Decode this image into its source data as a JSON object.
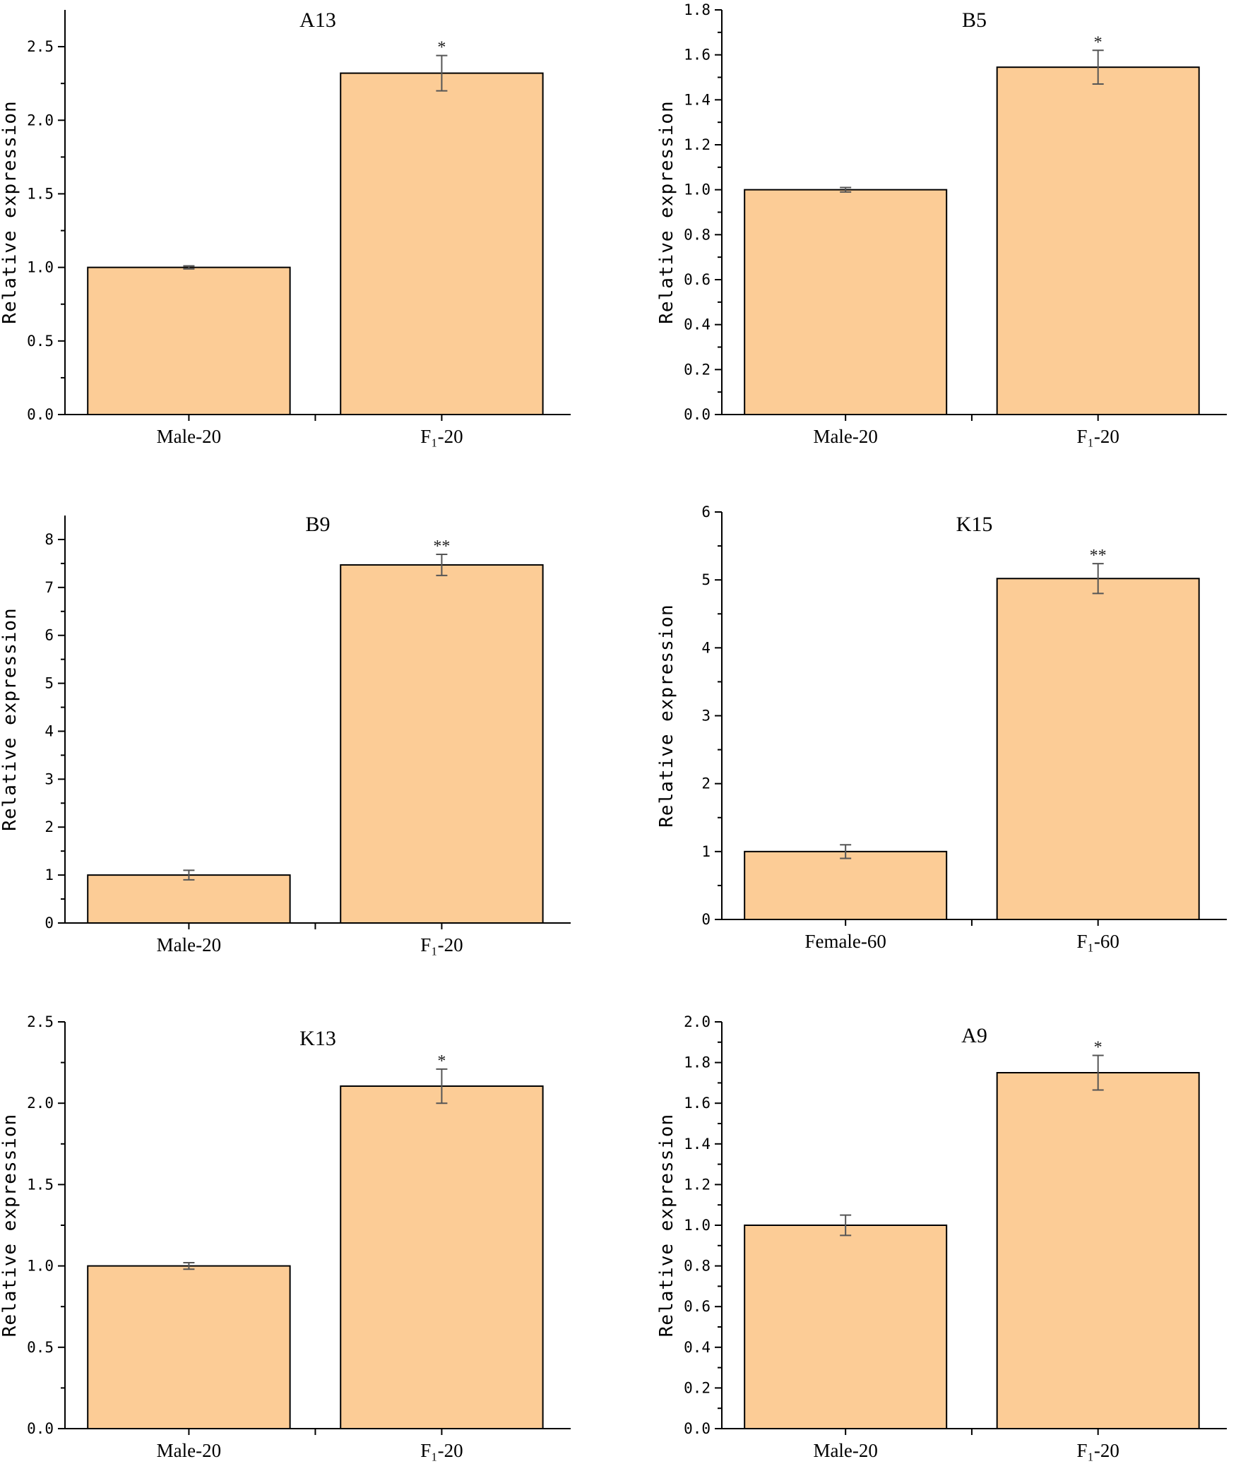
{
  "chart_data": [
    {
      "type": "bar",
      "title": "A13",
      "xlabel": "",
      "ylabel": "Relative expression",
      "categories": [
        "Male-20",
        "F₁-20"
      ],
      "values": [
        1.0,
        2.32
      ],
      "errors": [
        0.01,
        0.12
      ],
      "significance": [
        "",
        "*"
      ],
      "ylim": [
        0,
        2.75
      ],
      "yticks": [
        0,
        0.5,
        1.0,
        1.5,
        2.0,
        2.5
      ],
      "ytick_labels": [
        "0.0",
        "0.5",
        "1.0",
        "1.5",
        "2.0",
        "2.5"
      ],
      "color": "#FCCC96"
    },
    {
      "type": "bar",
      "title": "B5",
      "xlabel": "",
      "ylabel": "Relative expression",
      "categories": [
        "Male-20",
        "F₁-20"
      ],
      "values": [
        1.0,
        1.545
      ],
      "errors": [
        0.01,
        0.075
      ],
      "significance": [
        "",
        "*"
      ],
      "ylim": [
        0,
        1.8
      ],
      "yticks": [
        0,
        0.2,
        0.4,
        0.6,
        0.8,
        1.0,
        1.2,
        1.4,
        1.6,
        1.8
      ],
      "ytick_labels": [
        "0.0",
        "0.2",
        "0.4",
        "0.6",
        "0.8",
        "1.0",
        "1.2",
        "1.4",
        "1.6",
        "1.8"
      ],
      "color": "#FCCC96"
    },
    {
      "type": "bar",
      "title": "B9",
      "xlabel": "",
      "ylabel": "Relative expression",
      "categories": [
        "Male-20",
        "F₁-20"
      ],
      "values": [
        1.0,
        7.47
      ],
      "errors": [
        0.1,
        0.22
      ],
      "significance": [
        "",
        "**"
      ],
      "ylim": [
        0,
        8.5
      ],
      "yticks": [
        0,
        1,
        2,
        3,
        4,
        5,
        6,
        7,
        8
      ],
      "ytick_labels": [
        "0",
        "1",
        "2",
        "3",
        "4",
        "5",
        "6",
        "7",
        "8"
      ],
      "color": "#FCCC96"
    },
    {
      "type": "bar",
      "title": "K15",
      "xlabel": "",
      "ylabel": "Relative expression",
      "categories": [
        "Female-60",
        "F₁-60"
      ],
      "values": [
        1.0,
        5.02
      ],
      "errors": [
        0.1,
        0.22
      ],
      "significance": [
        "",
        "**"
      ],
      "ylim": [
        0,
        6
      ],
      "yticks": [
        0,
        1,
        2,
        3,
        4,
        5,
        6
      ],
      "ytick_labels": [
        "0",
        "1",
        "2",
        "3",
        "4",
        "5",
        "6"
      ],
      "color": "#FCCC96"
    },
    {
      "type": "bar",
      "title": "K13",
      "xlabel": "",
      "ylabel": "Relative expression",
      "categories": [
        "Male-20",
        "F₁-20"
      ],
      "values": [
        1.0,
        2.105
      ],
      "errors": [
        0.02,
        0.105
      ],
      "significance": [
        "",
        "*"
      ],
      "ylim": [
        0,
        2.5
      ],
      "yticks": [
        0,
        0.5,
        1.0,
        1.5,
        2.0,
        2.5
      ],
      "ytick_labels": [
        "0.0",
        "0.5",
        "1.0",
        "1.5",
        "2.0",
        "2.5"
      ],
      "color": "#FCCC96"
    },
    {
      "type": "bar",
      "title": "A9",
      "xlabel": "",
      "ylabel": "Relative expression",
      "categories": [
        "Male-20",
        "F₁-20"
      ],
      "values": [
        1.0,
        1.75
      ],
      "errors": [
        0.05,
        0.085
      ],
      "significance": [
        "",
        "*"
      ],
      "ylim": [
        0,
        2.0
      ],
      "yticks": [
        0,
        0.2,
        0.4,
        0.6,
        0.8,
        1.0,
        1.2,
        1.4,
        1.6,
        1.8,
        2.0
      ],
      "ytick_labels": [
        "0.0",
        "0.2",
        "0.4",
        "0.6",
        "0.8",
        "1.0",
        "1.2",
        "1.4",
        "1.6",
        "1.8",
        "2.0"
      ],
      "color": "#FCCC96"
    }
  ]
}
